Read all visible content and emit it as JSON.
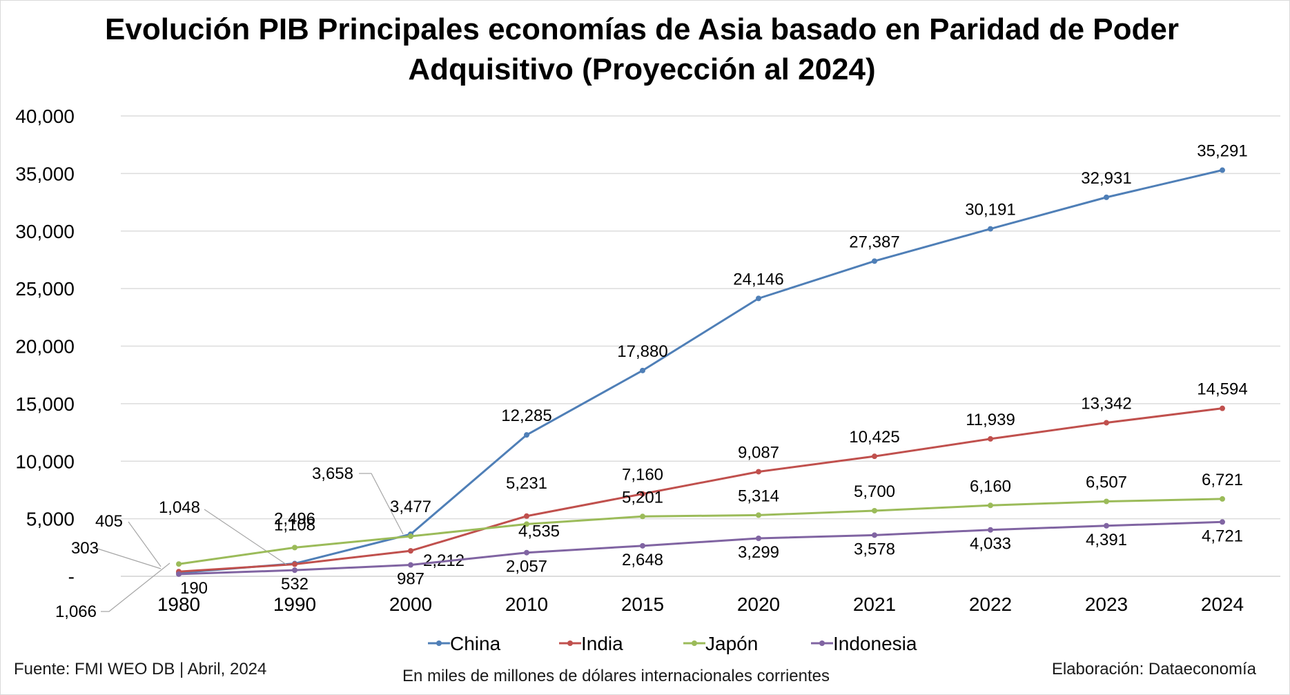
{
  "chart_data": {
    "type": "line",
    "title": "Evolución PIB Principales economías de Asia basado en Paridad de Poder Adquisitivo (Proyección al 2024)",
    "categories": [
      "1980",
      "1990",
      "2000",
      "2010",
      "2015",
      "2020",
      "2021",
      "2022",
      "2023",
      "2024"
    ],
    "y_ticks": [
      "-",
      "5,000",
      "10,000",
      "15,000",
      "20,000",
      "25,000",
      "30,000",
      "35,000",
      "40,000"
    ],
    "ylim": [
      0,
      40000
    ],
    "grid": "horizontal",
    "legend_position": "bottom",
    "series": [
      {
        "name": "China",
        "color": "#4f7fb7",
        "values": [
          303,
          1108,
          3658,
          12285,
          17880,
          24146,
          27387,
          30191,
          32931,
          35291
        ],
        "labels": [
          "303",
          "1,108",
          "3,658",
          "12,285",
          "17,880",
          "24,146",
          "27,387",
          "30,191",
          "32,931",
          "35,291"
        ]
      },
      {
        "name": "India",
        "color": "#c0504d",
        "values": [
          405,
          1048,
          2212,
          5231,
          7160,
          9087,
          10425,
          11939,
          13342,
          14594
        ],
        "labels": [
          "405",
          "1,048",
          "2,212",
          "5,231",
          "7,160",
          "9,087",
          "10,425",
          "11,939",
          "13,342",
          "14,594"
        ]
      },
      {
        "name": "Japón",
        "color": "#9bbb59",
        "values": [
          1066,
          2496,
          3477,
          4535,
          5201,
          5314,
          5700,
          6160,
          6507,
          6721
        ],
        "labels": [
          "1,066",
          "2,496",
          "3,477",
          "4,535",
          "5,201",
          "5,314",
          "5,700",
          "6,160",
          "6,507",
          "6,721"
        ]
      },
      {
        "name": "Indonesia",
        "color": "#8064a2",
        "values": [
          190,
          532,
          987,
          2057,
          2648,
          3299,
          3578,
          4033,
          4391,
          4721
        ],
        "labels": [
          "190",
          "532",
          "987",
          "2,057",
          "2,648",
          "3,299",
          "3,578",
          "4,033",
          "4,391",
          "4,721"
        ]
      }
    ]
  },
  "footer": {
    "source": "Fuente: FMI WEO DB | Abril, 2024",
    "units": "En miles de millones de dólares internacionales corrientes",
    "credit": "Elaboración: Dataeconomía"
  }
}
